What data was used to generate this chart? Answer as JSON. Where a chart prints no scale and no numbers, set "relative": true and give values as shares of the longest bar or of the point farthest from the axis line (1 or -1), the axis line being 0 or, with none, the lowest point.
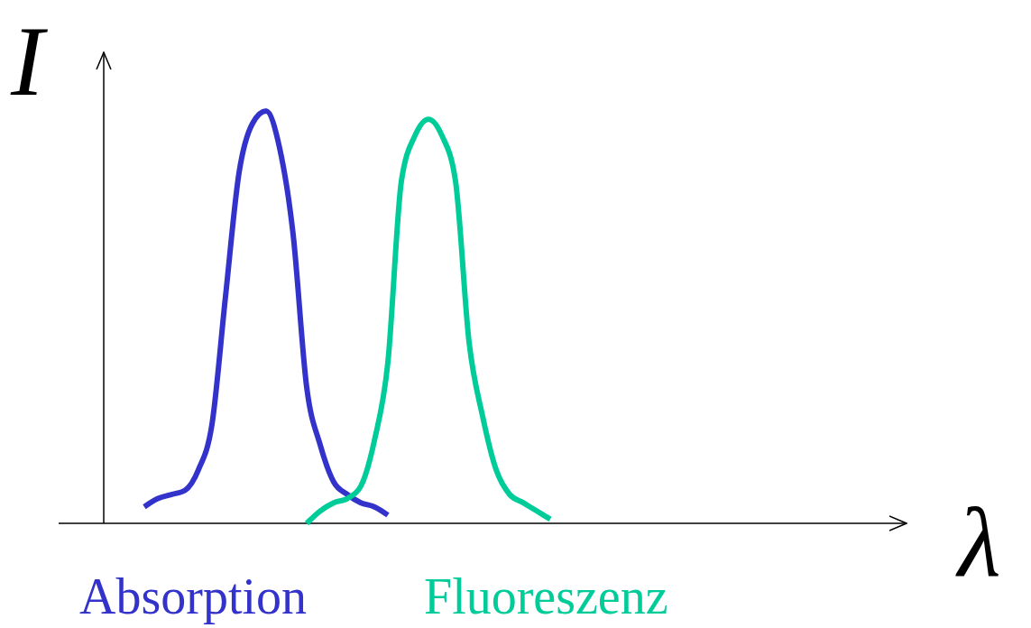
{
  "chart_data": {
    "type": "line",
    "relative": true,
    "xlabel": "λ",
    "ylabel": "I",
    "categories": [
      null,
      null,
      null,
      null,
      null,
      null,
      null,
      null,
      null,
      null,
      null,
      null,
      null,
      null,
      null,
      null,
      null,
      null,
      null,
      null,
      null,
      null,
      null,
      null,
      null,
      null,
      null,
      null,
      null,
      null,
      null,
      null,
      null,
      null,
      null,
      null,
      null,
      null,
      null,
      null,
      null,
      null,
      null,
      null,
      null,
      null,
      null,
      null,
      null,
      null,
      null,
      null,
      null,
      null,
      null,
      null,
      null,
      null,
      null,
      null
    ],
    "series": [
      {
        "name": "Absorption",
        "color": "#3333cc",
        "values": [
          null,
          null,
          null,
          0.04,
          0.06,
          0.07,
          0.08,
          0.13,
          0.24,
          0.55,
          0.85,
          0.97,
          1,
          0.91,
          0.7,
          0.33,
          0.19,
          0.1,
          0.07,
          0.05,
          0.04,
          0.02,
          null,
          null,
          null,
          null,
          null,
          null,
          null,
          null,
          null,
          null,
          null,
          null,
          null,
          null,
          null,
          null,
          null,
          null,
          null,
          null,
          null,
          null,
          null,
          null,
          null,
          null,
          null,
          null,
          null,
          null,
          null,
          null,
          null,
          null,
          null,
          null,
          null,
          null
        ]
      },
      {
        "name": "Fluoreszenz",
        "color": "#00cc99",
        "values": [
          null,
          null,
          null,
          null,
          null,
          null,
          null,
          null,
          null,
          null,
          null,
          null,
          null,
          null,
          null,
          0,
          0.03,
          0.05,
          0.06,
          0.09,
          0.2,
          0.39,
          0.83,
          0.94,
          0.98,
          0.94,
          0.83,
          0.44,
          0.26,
          0.13,
          0.07,
          0.05,
          0.03,
          0.01,
          null,
          null,
          null,
          null,
          null,
          null,
          null,
          null,
          null,
          null,
          null,
          null,
          null,
          null,
          null,
          null,
          null,
          null,
          null,
          null,
          null,
          null,
          null,
          null,
          null,
          null
        ]
      }
    ],
    "legend": false,
    "marker": "none",
    "line_style": "solid"
  }
}
